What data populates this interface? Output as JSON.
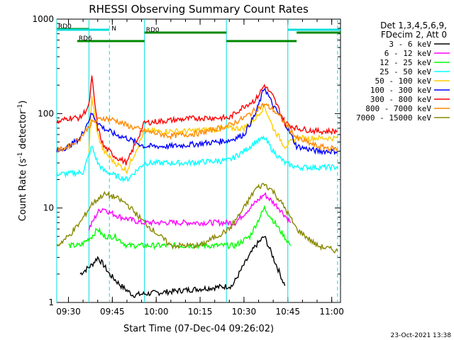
{
  "chart_data": {
    "type": "line",
    "title": "RHESSI Observing Summary Count Rates",
    "xlabel": "Start Time (07-Dec-04 09:26:02)",
    "ylabel": "Count Rate (s",
    "ylabel_sup1": "-1",
    "ylabel_mid": " detector",
    "ylabel_sup2": "-1",
    "ylabel_end": ")",
    "y_scale": "log",
    "ylim": [
      1,
      1000
    ],
    "xlim": [
      "09:26",
      "11:03"
    ],
    "x_ticks": [
      "09:30",
      "09:45",
      "10:00",
      "10:15",
      "10:30",
      "10:45",
      "11:00"
    ],
    "y_ticks": [
      "1",
      "10",
      "100",
      "1000"
    ],
    "legend_header": [
      "Det 1,3,4,5,6,9,",
      "FDecim 2, Att 0"
    ],
    "series": [
      {
        "name": "3 - 6 keV",
        "color": "#000000",
        "x": [
          "09:34",
          "09:38",
          "09:40",
          "09:42",
          "09:44",
          "09:48",
          "09:52",
          "10:26",
          "10:30",
          "10:34",
          "10:37",
          "10:40",
          "10:44"
        ],
        "values": [
          2,
          2.5,
          3,
          2.5,
          2,
          1.5,
          1.2,
          1.5,
          2.5,
          4,
          5,
          3,
          1.5
        ]
      },
      {
        "name": "6 - 12 keV",
        "color": "#ff00ff",
        "x": [
          "09:37",
          "09:40",
          "09:42",
          "09:44",
          "09:48",
          "09:55",
          "10:00",
          "10:15",
          "10:27",
          "10:32",
          "10:37",
          "10:42",
          "10:46"
        ],
        "values": [
          6,
          9,
          10,
          9,
          8,
          7,
          7,
          7,
          7,
          10,
          14,
          10,
          7
        ]
      },
      {
        "name": "12 - 25 keV",
        "color": "#00ff00",
        "x": [
          "09:30",
          "09:34",
          "09:38",
          "09:40",
          "09:42",
          "09:46",
          "09:50",
          "10:27",
          "10:32",
          "10:37",
          "10:42",
          "10:46"
        ],
        "values": [
          4,
          4,
          5,
          6,
          5,
          5,
          4,
          4,
          5,
          10,
          6,
          4
        ]
      },
      {
        "name": "25 - 50 keV",
        "color": "#00ffff",
        "x": [
          "09:26",
          "09:30",
          "09:35",
          "09:38",
          "09:40",
          "09:42",
          "09:46",
          "09:50",
          "09:56",
          "10:10",
          "10:25",
          "10:30",
          "10:34",
          "10:37",
          "10:40",
          "10:44",
          "10:48",
          "10:55",
          "11:02"
        ],
        "values": [
          23,
          23,
          24,
          45,
          30,
          25,
          22,
          20,
          30,
          30,
          32,
          40,
          50,
          55,
          40,
          30,
          27,
          27,
          27
        ]
      },
      {
        "name": "50 - 100 keV",
        "color": "#ffcc00",
        "x": [
          "09:37",
          "09:38",
          "09:40",
          "09:42",
          "09:46",
          "09:50",
          "09:56",
          "10:10",
          "10:25",
          "10:30",
          "10:34",
          "10:37",
          "10:40",
          "10:44",
          "10:48",
          "10:55",
          "11:02"
        ],
        "values": [
          40,
          150,
          60,
          40,
          30,
          25,
          65,
          65,
          70,
          70,
          90,
          120,
          70,
          45,
          55,
          55,
          55
        ]
      },
      {
        "name": "100 - 300 keV",
        "color": "#0000ff",
        "x": [
          "09:26",
          "09:30",
          "09:34",
          "09:38",
          "09:40",
          "09:42",
          "09:46",
          "09:50",
          "09:56",
          "10:05",
          "10:15",
          "10:25",
          "10:30",
          "10:34",
          "10:37",
          "10:40",
          "10:44",
          "10:48",
          "10:55",
          "11:02"
        ],
        "values": [
          40,
          45,
          55,
          100,
          80,
          70,
          60,
          55,
          45,
          45,
          48,
          52,
          60,
          100,
          190,
          120,
          80,
          45,
          40,
          40
        ]
      },
      {
        "name": "300 - 800 keV",
        "color": "#ff0000",
        "x": [
          "09:26",
          "09:30",
          "09:34",
          "09:37",
          "09:38",
          "09:40",
          "09:42",
          "09:46",
          "09:50",
          "09:56",
          "10:05",
          "10:15",
          "10:25",
          "10:30",
          "10:34",
          "10:37",
          "10:40",
          "10:44",
          "10:48",
          "10:55",
          "11:02"
        ],
        "values": [
          80,
          90,
          90,
          120,
          240,
          70,
          45,
          35,
          30,
          80,
          85,
          90,
          90,
          120,
          140,
          200,
          150,
          80,
          70,
          65,
          65
        ]
      },
      {
        "name": "800 - 7000 keV",
        "color": "#ff8800",
        "x": [
          "09:26",
          "09:30",
          "09:34",
          "09:38",
          "09:42",
          "09:46",
          "09:50",
          "09:56",
          "10:05",
          "10:15",
          "10:25",
          "10:30",
          "10:34",
          "10:37",
          "10:40",
          "10:44",
          "10:48",
          "10:55",
          "11:02"
        ],
        "values": [
          40,
          45,
          55,
          80,
          90,
          85,
          75,
          65,
          58,
          62,
          75,
          90,
          110,
          125,
          110,
          80,
          55,
          45,
          42
        ]
      },
      {
        "name": "7000 - 15000 keV",
        "color": "#888800",
        "x": [
          "09:26",
          "09:30",
          "09:34",
          "09:38",
          "09:42",
          "09:46",
          "09:50",
          "09:56",
          "10:05",
          "10:15",
          "10:25",
          "10:30",
          "10:34",
          "10:37",
          "10:40",
          "10:44",
          "10:48",
          "10:55",
          "11:02"
        ],
        "values": [
          4,
          5,
          7,
          11,
          14,
          13,
          11,
          7,
          4,
          4,
          6,
          10,
          16,
          18,
          15,
          10,
          6,
          4,
          3.5
        ]
      }
    ],
    "annotations": {
      "flags": [
        {
          "label": "RD0",
          "color": "#008800",
          "segments": [
            [
              "09:26",
              "09:37"
            ]
          ]
        },
        {
          "label": "RD0",
          "color": "#008800",
          "segments": [
            [
              "09:56",
              "10:24"
            ],
            [
              "10:48",
              "11:03"
            ]
          ]
        },
        {
          "label": "RD6",
          "color": "#008800",
          "segments": [
            [
              "09:33",
              "09:56"
            ],
            [
              "10:24",
              "10:48"
            ]
          ]
        },
        {
          "label": "N",
          "color": "#00dddd",
          "segments": [
            [
              "09:26",
              "09:44"
            ],
            [
              "10:45",
              "11:03"
            ]
          ]
        }
      ],
      "vertical_lines": [
        {
          "x": "09:26",
          "style": "solid",
          "color": "#00dddd"
        },
        {
          "x": "09:37",
          "style": "solid",
          "color": "#00dddd"
        },
        {
          "x": "09:44",
          "style": "dashed",
          "color": "#00dddd"
        },
        {
          "x": "09:56",
          "style": "solid",
          "color": "#00dddd"
        },
        {
          "x": "10:24",
          "style": "solid",
          "color": "#00dddd"
        },
        {
          "x": "10:45",
          "style": "solid",
          "color": "#00dddd"
        },
        {
          "x": "11:02",
          "style": "dashed",
          "color": "#00dddd"
        }
      ]
    },
    "footer": "23-Oct-2021 13:38",
    "grid": false,
    "legend_placement": "right"
  }
}
